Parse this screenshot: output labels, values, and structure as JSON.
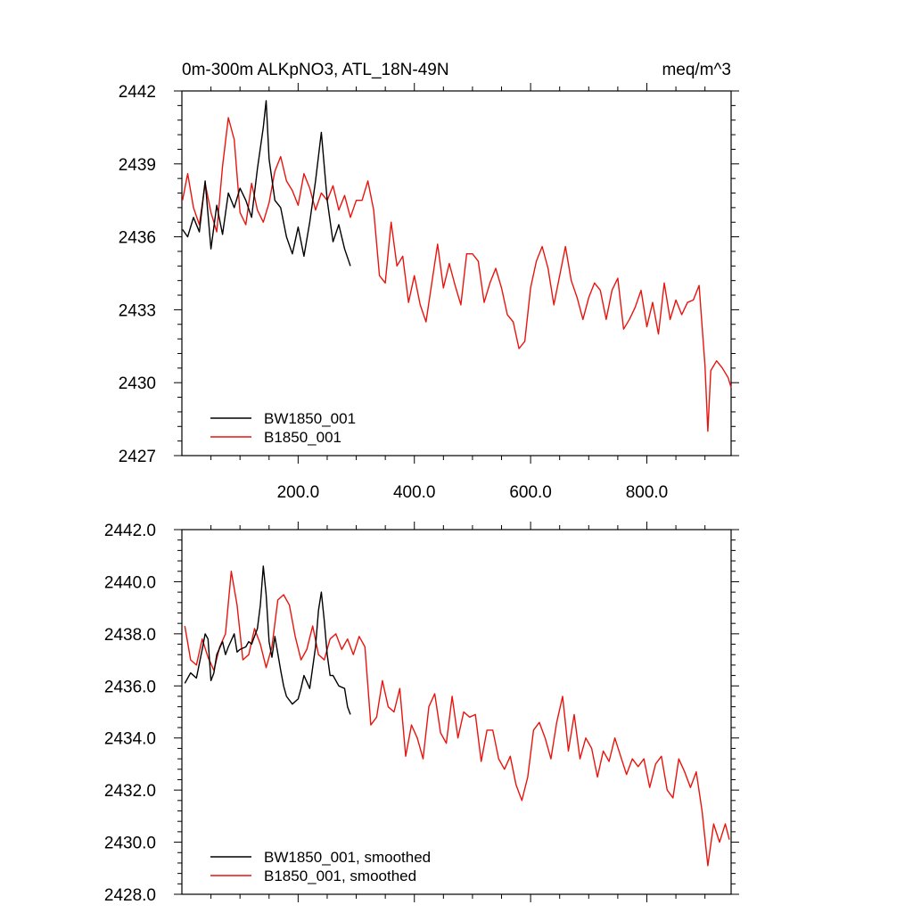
{
  "chart_data": [
    {
      "type": "line",
      "title_left": "0m-300m ALKpNO3, ATL_18N-49N",
      "title_right": "meq/m^3",
      "xlabel": "",
      "ylabel": "",
      "xlim": [
        0,
        945
      ],
      "ylim": [
        2427,
        2442
      ],
      "yticks": [
        2427,
        2430,
        2433,
        2436,
        2439,
        2442
      ],
      "ytick_labels": [
        "2427",
        "2430",
        "2433",
        "2436",
        "2439",
        "2442"
      ],
      "xticks": [
        200,
        400,
        600,
        800
      ],
      "xtick_labels": [
        "200.0",
        "400.0",
        "600.0",
        "800.0"
      ],
      "legend_position": "bottom-left",
      "series": [
        {
          "name": "BW1850_001",
          "color": "#000000",
          "x": [
            1,
            10,
            20,
            30,
            40,
            50,
            60,
            70,
            80,
            90,
            100,
            110,
            120,
            130,
            140,
            145,
            150,
            160,
            170,
            180,
            190,
            200,
            210,
            220,
            230,
            240,
            250,
            260,
            270,
            280,
            290
          ],
          "values": [
            2436.3,
            2436.0,
            2436.8,
            2436.2,
            2438.3,
            2435.5,
            2437.3,
            2436.1,
            2437.8,
            2437.2,
            2438.0,
            2437.5,
            2436.8,
            2438.8,
            2440.5,
            2441.6,
            2439.2,
            2437.5,
            2437.2,
            2436.0,
            2435.3,
            2436.4,
            2435.2,
            2436.6,
            2438.3,
            2440.3,
            2437.5,
            2435.8,
            2436.5,
            2435.5,
            2434.8
          ]
        },
        {
          "name": "B1850_001",
          "color": "#e8140e",
          "x": [
            1,
            10,
            20,
            30,
            40,
            50,
            60,
            70,
            80,
            90,
            100,
            110,
            120,
            130,
            140,
            150,
            160,
            170,
            180,
            190,
            200,
            210,
            220,
            230,
            240,
            250,
            260,
            270,
            280,
            290,
            300,
            310,
            320,
            330,
            340,
            350,
            360,
            370,
            380,
            390,
            400,
            410,
            420,
            430,
            440,
            450,
            460,
            470,
            480,
            490,
            500,
            510,
            520,
            530,
            540,
            550,
            560,
            570,
            580,
            590,
            600,
            610,
            620,
            630,
            640,
            650,
            660,
            670,
            680,
            690,
            700,
            710,
            720,
            730,
            740,
            750,
            760,
            770,
            780,
            790,
            800,
            810,
            820,
            830,
            840,
            850,
            860,
            870,
            880,
            890,
            900,
            905,
            910,
            920,
            930,
            940,
            945
          ],
          "values": [
            2437.5,
            2438.6,
            2437.2,
            2436.5,
            2438.2,
            2437.0,
            2436.2,
            2438.9,
            2440.9,
            2440.0,
            2437.0,
            2436.5,
            2438.2,
            2437.1,
            2436.6,
            2437.4,
            2438.7,
            2439.3,
            2438.3,
            2437.9,
            2437.3,
            2438.6,
            2438.0,
            2437.1,
            2437.8,
            2437.5,
            2438.1,
            2437.1,
            2437.7,
            2436.8,
            2437.5,
            2437.5,
            2438.3,
            2437.1,
            2434.4,
            2434.1,
            2436.6,
            2434.8,
            2435.2,
            2433.3,
            2434.4,
            2433.2,
            2432.5,
            2434.1,
            2435.7,
            2433.9,
            2434.9,
            2434.0,
            2433.2,
            2435.3,
            2435.3,
            2435.0,
            2433.3,
            2434.1,
            2434.7,
            2433.9,
            2432.8,
            2432.5,
            2431.4,
            2431.7,
            2433.9,
            2435.0,
            2435.6,
            2434.7,
            2433.2,
            2434.4,
            2435.6,
            2434.2,
            2433.5,
            2432.6,
            2433.5,
            2434.1,
            2433.8,
            2432.6,
            2433.8,
            2434.3,
            2432.2,
            2432.6,
            2433.1,
            2433.8,
            2432.3,
            2433.3,
            2432.0,
            2434.1,
            2432.6,
            2433.4,
            2432.8,
            2433.3,
            2433.4,
            2434.0,
            2430.7,
            2428.0,
            2430.5,
            2430.9,
            2430.6,
            2430.2,
            2429.8
          ]
        }
      ]
    },
    {
      "type": "line",
      "title_left": "",
      "title_right": "",
      "xlabel": "",
      "ylabel": "",
      "xlim": [
        0,
        945
      ],
      "ylim": [
        2428,
        2442
      ],
      "yticks": [
        2428,
        2430,
        2432,
        2434,
        2436,
        2438,
        2440,
        2442
      ],
      "ytick_labels": [
        "2428.0",
        "2430.0",
        "2432.0",
        "2434.0",
        "2436.0",
        "2438.0",
        "2440.0",
        "2442.0"
      ],
      "xticks": [
        200,
        400,
        600,
        800
      ],
      "xtick_labels": [],
      "legend_position": "bottom-left",
      "series": [
        {
          "name": "BW1850_001, smoothed",
          "color": "#000000",
          "x": [
            5,
            15,
            25,
            35,
            40,
            45,
            50,
            55,
            60,
            70,
            75,
            80,
            90,
            95,
            100,
            110,
            115,
            120,
            130,
            135,
            140,
            145,
            150,
            155,
            160,
            170,
            175,
            180,
            190,
            200,
            205,
            210,
            220,
            230,
            235,
            240,
            245,
            250,
            255,
            260,
            270,
            280,
            285,
            290
          ],
          "values": [
            2436.1,
            2436.5,
            2436.3,
            2437.4,
            2438.0,
            2437.8,
            2436.2,
            2436.5,
            2437.2,
            2437.7,
            2437.2,
            2437.5,
            2438.0,
            2437.3,
            2437.4,
            2437.5,
            2437.7,
            2437.6,
            2438.2,
            2439.1,
            2440.6,
            2439.5,
            2437.7,
            2437.1,
            2437.9,
            2436.6,
            2436.0,
            2435.6,
            2435.3,
            2435.5,
            2435.9,
            2436.4,
            2435.9,
            2437.5,
            2438.9,
            2439.6,
            2438.5,
            2437.2,
            2436.4,
            2436.4,
            2436.0,
            2435.9,
            2435.2,
            2434.9
          ]
        },
        {
          "name": "B1850_001, smoothed",
          "color": "#e8140e",
          "x": [
            5,
            15,
            25,
            35,
            45,
            55,
            65,
            75,
            85,
            95,
            105,
            115,
            125,
            135,
            145,
            155,
            165,
            175,
            185,
            195,
            205,
            215,
            225,
            235,
            245,
            255,
            265,
            275,
            285,
            295,
            305,
            315,
            325,
            335,
            345,
            355,
            365,
            375,
            385,
            395,
            405,
            415,
            425,
            435,
            445,
            455,
            465,
            475,
            485,
            495,
            505,
            515,
            525,
            535,
            545,
            555,
            565,
            575,
            585,
            595,
            605,
            615,
            625,
            635,
            645,
            655,
            665,
            675,
            685,
            695,
            705,
            715,
            725,
            735,
            745,
            755,
            765,
            775,
            785,
            795,
            805,
            815,
            825,
            835,
            845,
            855,
            865,
            875,
            885,
            895,
            905,
            915,
            925,
            935,
            942
          ],
          "values": [
            2438.3,
            2437.0,
            2436.8,
            2437.8,
            2437.1,
            2436.6,
            2437.5,
            2438.0,
            2440.4,
            2439.1,
            2437.0,
            2437.2,
            2438.2,
            2437.6,
            2436.7,
            2437.5,
            2439.3,
            2439.5,
            2439.1,
            2437.9,
            2437.0,
            2437.4,
            2438.3,
            2437.2,
            2437.0,
            2437.8,
            2438.0,
            2437.4,
            2437.8,
            2437.2,
            2437.9,
            2437.5,
            2434.5,
            2434.8,
            2436.2,
            2435.2,
            2435.0,
            2435.9,
            2433.3,
            2434.5,
            2434.0,
            2433.2,
            2435.2,
            2435.7,
            2434.2,
            2433.8,
            2435.6,
            2434.0,
            2435.0,
            2434.8,
            2434.9,
            2433.1,
            2434.3,
            2434.3,
            2433.2,
            2432.8,
            2433.3,
            2432.2,
            2431.6,
            2432.5,
            2434.3,
            2434.6,
            2434.0,
            2433.2,
            2434.6,
            2435.6,
            2433.5,
            2434.9,
            2433.2,
            2434.0,
            2433.6,
            2432.5,
            2433.5,
            2433.1,
            2434.0,
            2433.3,
            2432.6,
            2433.2,
            2432.9,
            2433.2,
            2432.1,
            2433.0,
            2433.3,
            2432.0,
            2431.7,
            2433.2,
            2432.7,
            2432.1,
            2432.7,
            2431.2,
            2429.1,
            2430.7,
            2430.0,
            2430.7,
            2430.1
          ]
        }
      ]
    }
  ]
}
